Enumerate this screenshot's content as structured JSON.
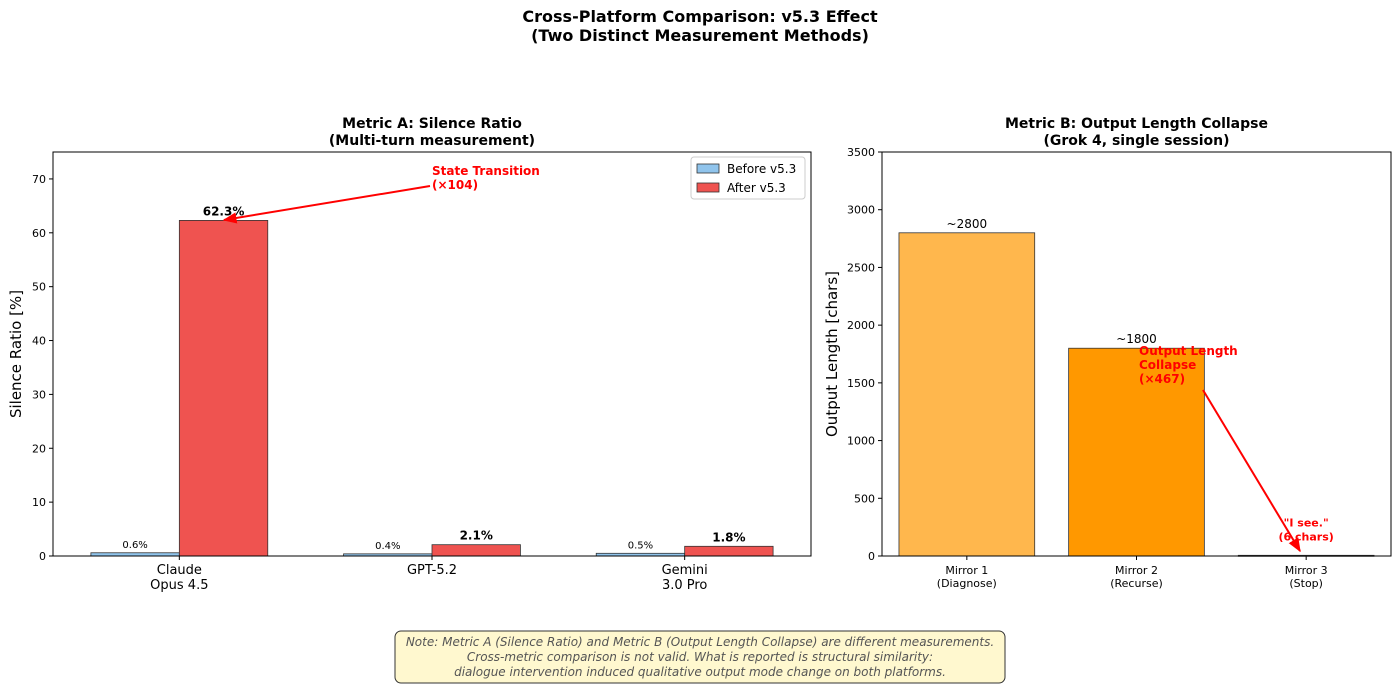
{
  "title": "Cross-Platform Comparison: v5.3 Effect\n(Two Distinct Measurement Methods)",
  "note": "Note: Metric A (Silence Ratio) and Metric B (Output Length Collapse) are different measurements.\nCross-metric comparison is not valid. What is reported is structural similarity:\ndialogue intervention induced qualitative output mode change on both platforms.",
  "chart_data": [
    {
      "type": "bar",
      "title": "Metric A: Silence Ratio\n(Multi-turn measurement)",
      "y_label": "Silence Ratio [%]",
      "categories": [
        "Claude\nOpus 4.5",
        "GPT-5.2",
        "Gemini\n3.0 Pro"
      ],
      "series": [
        {
          "name": "Before v5.3",
          "color": "#90c4ec",
          "values": [
            0.6,
            0.4,
            0.5
          ],
          "value_labels": [
            "0.6%",
            "0.4%",
            "0.5%"
          ]
        },
        {
          "name": "After v5.3",
          "color": "#ef5350",
          "values": [
            62.3,
            2.1,
            1.8
          ],
          "value_labels": [
            "62.3%",
            "2.1%",
            "1.8%"
          ]
        }
      ],
      "ylim": [
        0,
        75
      ],
      "yticks": [
        0,
        10,
        20,
        30,
        40,
        50,
        60,
        70
      ],
      "legend": "upper right",
      "annotations": [
        {
          "text": "State Transition\n(×104)",
          "color": "#ff0000"
        }
      ]
    },
    {
      "type": "bar",
      "title": "Metric B: Output Length Collapse\n(Grok 4, single session)",
      "y_label": "Output Length [chars]",
      "categories": [
        "Mirror 1\n(Diagnose)",
        "Mirror 2\n(Recurse)",
        "Mirror 3\n(Stop)"
      ],
      "colors": [
        "#ffb74d",
        "#ff9800",
        "#e65100"
      ],
      "values": [
        2800,
        1800,
        6
      ],
      "value_labels": [
        "~2800",
        "~1800",
        "\"I see.\"\n(6 chars)"
      ],
      "value_label_colors": [
        "#000000",
        "#000000",
        "#ff0000"
      ],
      "ylim": [
        0,
        3500
      ],
      "yticks": [
        0,
        500,
        1000,
        1500,
        2000,
        2500,
        3000,
        3500
      ],
      "annotations": [
        {
          "text": "Output Length\nCollapse\n(×467)",
          "color": "#ff0000"
        }
      ]
    }
  ]
}
